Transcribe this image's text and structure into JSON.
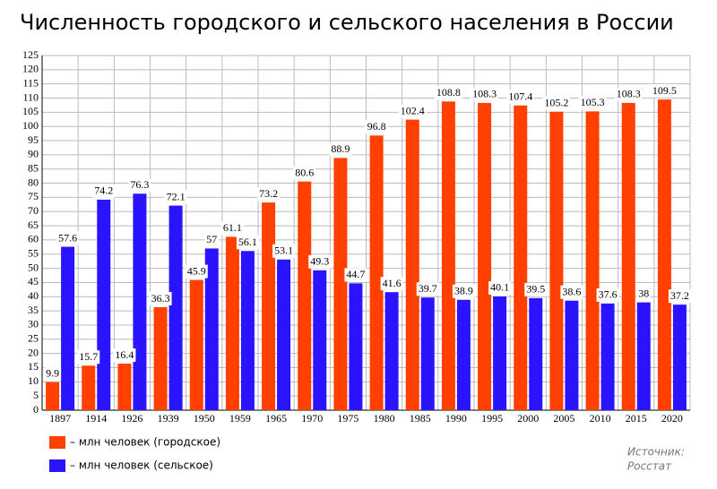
{
  "chart_data": {
    "type": "bar",
    "title": "Численность городского и сельского населения в России",
    "categories": [
      "1897",
      "1914",
      "1926",
      "1939",
      "1950",
      "1959",
      "1965",
      "1970",
      "1975",
      "1980",
      "1985",
      "1990",
      "1995",
      "2000",
      "2005",
      "2010",
      "2015",
      "2020"
    ],
    "series": [
      {
        "name": "– млн человек (городское)",
        "color": "#ff4000",
        "values": [
          9.9,
          15.7,
          16.4,
          36.3,
          45.9,
          61.1,
          73.2,
          80.6,
          88.9,
          96.8,
          102.4,
          108.8,
          108.3,
          107.4,
          105.2,
          105.3,
          108.3,
          109.5
        ]
      },
      {
        "name": "– млн человек (сельское)",
        "color": "#2a14ff",
        "values": [
          57.6,
          74.2,
          76.3,
          72.1,
          57,
          56.1,
          53.1,
          49.3,
          44.7,
          41.6,
          39.7,
          38.9,
          40.1,
          39.5,
          38.6,
          37.6,
          38,
          37.2
        ]
      }
    ],
    "ylim": [
      0,
      125
    ],
    "yticks": [
      0,
      5,
      10,
      15,
      20,
      25,
      30,
      35,
      40,
      45,
      50,
      55,
      60,
      65,
      70,
      75,
      80,
      85,
      90,
      95,
      100,
      105,
      110,
      115,
      120,
      125
    ],
    "grid": true,
    "source_label": "Источник:",
    "source": "Росстат"
  }
}
